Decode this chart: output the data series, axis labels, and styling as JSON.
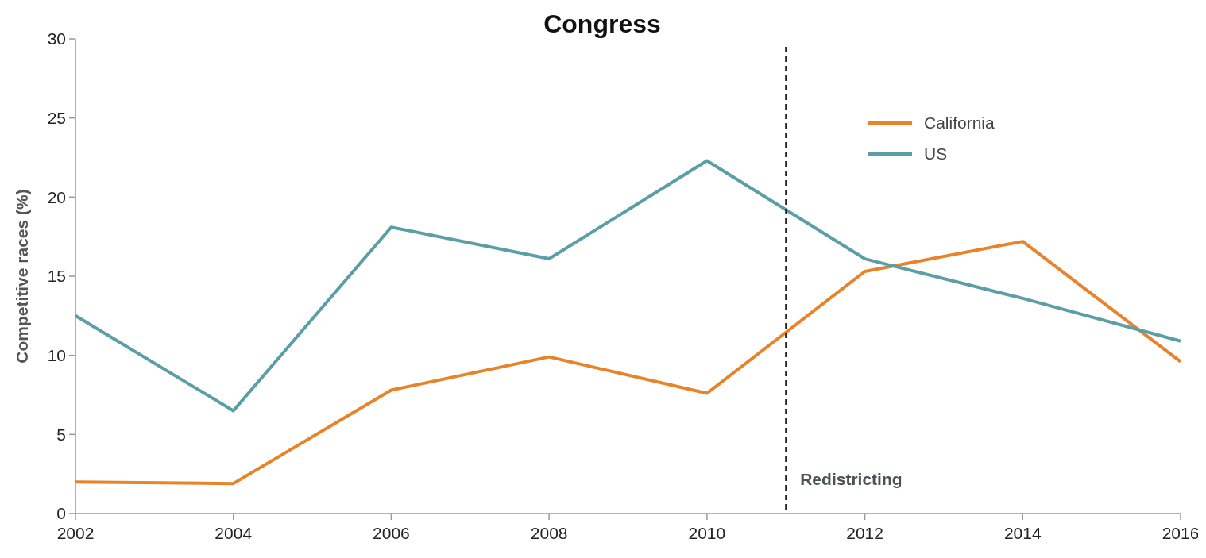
{
  "chart_data": {
    "type": "line",
    "title": "Congress",
    "ylabel": "Competitive races (%)",
    "x": [
      2002,
      2004,
      2006,
      2008,
      2010,
      2012,
      2014,
      2016
    ],
    "series": [
      {
        "name": "California",
        "color": "#e8832a",
        "values": [
          2.0,
          1.9,
          7.8,
          9.9,
          7.6,
          15.3,
          17.2,
          9.6
        ]
      },
      {
        "name": "US",
        "color": "#5b9ea6",
        "values": [
          12.5,
          6.5,
          18.1,
          16.1,
          22.3,
          16.1,
          13.6,
          10.9
        ]
      }
    ],
    "xlim": [
      2002,
      2016
    ],
    "xticks": [
      2002,
      2004,
      2006,
      2008,
      2010,
      2012,
      2014,
      2016
    ],
    "ylim": [
      0,
      30
    ],
    "yticks": [
      0,
      5,
      10,
      15,
      20,
      25,
      30
    ],
    "ref_lines": [
      {
        "axis": "x",
        "value": 2011,
        "label": "Redistricting",
        "line_style": "dashed",
        "color": "#222222"
      }
    ],
    "legend": "top right",
    "grid": false,
    "marker": "none",
    "line_style": "solid"
  }
}
